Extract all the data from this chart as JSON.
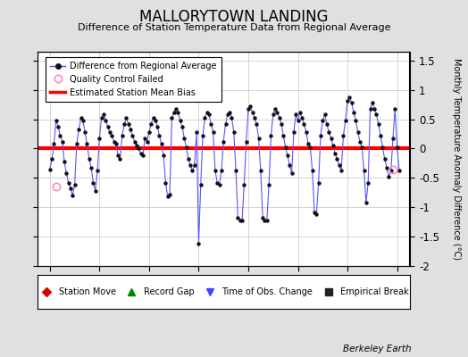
{
  "title": "MALLORYTOWN LANDING",
  "subtitle": "Difference of Station Temperature Data from Regional Average",
  "ylabel_right": "Monthly Temperature Anomaly Difference (°C)",
  "xlim": [
    1977.5,
    1992.5
  ],
  "ylim": [
    -2.0,
    1.65
  ],
  "yticks": [
    -2.0,
    -1.5,
    -1.0,
    -0.5,
    0.0,
    0.5,
    1.0,
    1.5
  ],
  "yticklabels": [
    "-2",
    "-1.5",
    "-1",
    "-0.5",
    "0",
    "0.5",
    "1",
    "1.5"
  ],
  "xticks": [
    1978,
    1980,
    1982,
    1984,
    1986,
    1988,
    1990,
    1992
  ],
  "bg_color": "#e0e0e0",
  "plot_bg": "#ffffff",
  "line_color": "#5555ff",
  "marker_color": "#111111",
  "bias_color": "#ff0000",
  "qc_color": "#ff88bb",
  "berkeley_earth": "Berkeley Earth",
  "raw_data": {
    "1978": [
      -0.35,
      -0.18,
      0.08,
      0.48,
      0.38,
      0.22,
      0.12,
      -0.22,
      -0.42,
      -0.58,
      -0.68,
      -0.8
    ],
    "1979": [
      -0.62,
      0.08,
      0.32,
      0.52,
      0.48,
      0.28,
      0.08,
      -0.18,
      -0.32,
      -0.58,
      -0.72,
      -0.38
    ],
    "1980": [
      0.18,
      0.52,
      0.58,
      0.48,
      0.38,
      0.28,
      0.22,
      0.12,
      0.08,
      -0.12,
      -0.18,
      0.22
    ],
    "1981": [
      0.42,
      0.52,
      0.42,
      0.32,
      0.22,
      0.12,
      0.05,
      0.0,
      -0.08,
      -0.12,
      0.18,
      0.12
    ],
    "1982": [
      0.28,
      0.42,
      0.52,
      0.48,
      0.38,
      0.22,
      0.08,
      -0.12,
      -0.58,
      -0.82,
      -0.78,
      0.52
    ],
    "1983": [
      0.62,
      0.68,
      0.62,
      0.48,
      0.38,
      0.18,
      0.02,
      -0.18,
      -0.28,
      -0.38,
      -0.28,
      0.28
    ],
    "1984": [
      -1.62,
      -0.62,
      0.22,
      0.52,
      0.62,
      0.58,
      0.42,
      0.28,
      -0.38,
      -0.58,
      -0.62,
      -0.38
    ],
    "1985": [
      0.12,
      0.42,
      0.58,
      0.62,
      0.52,
      0.28,
      -0.38,
      -1.18,
      -1.22,
      -1.22,
      -0.62,
      0.12
    ],
    "1986": [
      0.68,
      0.72,
      0.62,
      0.52,
      0.42,
      0.18,
      -0.38,
      -1.18,
      -1.22,
      -1.22,
      -0.62,
      0.22
    ],
    "1987": [
      0.58,
      0.68,
      0.62,
      0.52,
      0.42,
      0.22,
      0.02,
      -0.12,
      -0.28,
      -0.42,
      0.28,
      0.58
    ],
    "1988": [
      0.48,
      0.62,
      0.52,
      0.42,
      0.28,
      0.08,
      0.02,
      -0.38,
      -1.08,
      -1.12,
      -0.58,
      0.22
    ],
    "1989": [
      0.48,
      0.58,
      0.42,
      0.28,
      0.18,
      0.05,
      -0.08,
      -0.18,
      -0.28,
      -0.38,
      0.22,
      0.48
    ],
    "1990": [
      0.82,
      0.88,
      0.78,
      0.62,
      0.48,
      0.28,
      0.12,
      0.02,
      -0.38,
      -0.92,
      -0.58,
      0.68
    ],
    "1991": [
      0.78,
      0.68,
      0.58,
      0.42,
      0.22,
      0.02,
      -0.18,
      -0.32,
      -0.48,
      -0.38,
      0.18,
      0.68
    ],
    "1992": [
      0.02,
      -0.38
    ]
  },
  "qc_fail_times": [
    1978.25,
    1991.833
  ],
  "qc_fail_values": [
    -0.65,
    -0.35
  ]
}
